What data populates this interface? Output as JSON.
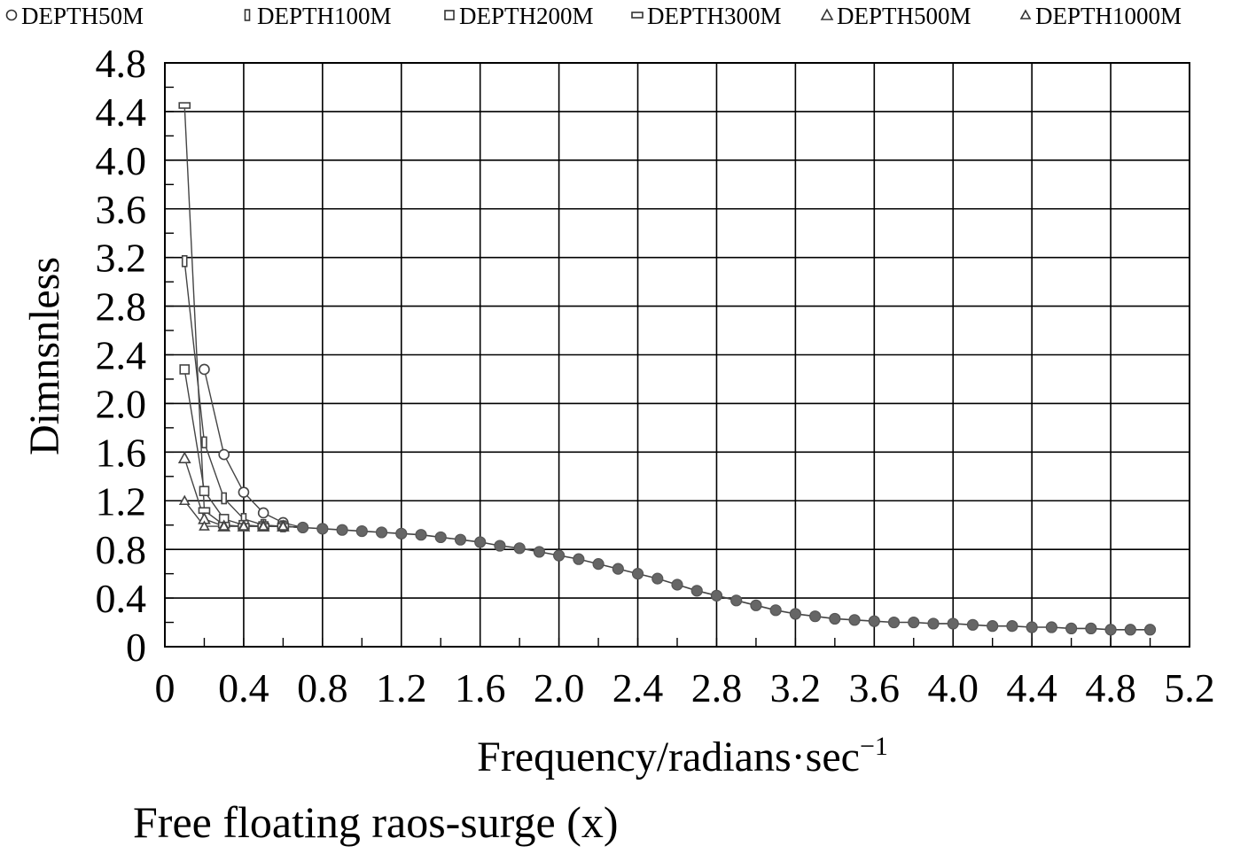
{
  "chart_data": {
    "type": "line",
    "title": "",
    "caption": "Free floating raos-surge (x)",
    "xlabel": "Frequency/radians·sec",
    "xlabel_sup": "−1",
    "ylabel": "Dimnsnless",
    "xlim": [
      0,
      5.2
    ],
    "ylim": [
      0,
      4.8
    ],
    "xticks": [
      "0",
      "0.4",
      "0.8",
      "1.2",
      "1.6",
      "2.0",
      "2.4",
      "2.8",
      "3.2",
      "3.6",
      "4.0",
      "4.4",
      "4.8",
      "5.2"
    ],
    "yticks": [
      "0",
      "0.4",
      "0.8",
      "1.2",
      "1.6",
      "2.0",
      "2.4",
      "2.8",
      "3.2",
      "3.6",
      "4.0",
      "4.4",
      "4.8"
    ],
    "grid": true,
    "legend_position": "top",
    "shared_tail": {
      "x": [
        0.7,
        0.8,
        0.9,
        1.0,
        1.1,
        1.2,
        1.3,
        1.4,
        1.5,
        1.6,
        1.7,
        1.8,
        1.9,
        2.0,
        2.1,
        2.2,
        2.3,
        2.4,
        2.5,
        2.6,
        2.7,
        2.8,
        2.9,
        3.0,
        3.1,
        3.2,
        3.3,
        3.4,
        3.5,
        3.6,
        3.7,
        3.8,
        3.9,
        4.0,
        4.1,
        4.2,
        4.3,
        4.4,
        4.5,
        4.6,
        4.7,
        4.8,
        4.9,
        5.0
      ],
      "y": [
        0.98,
        0.97,
        0.96,
        0.95,
        0.94,
        0.93,
        0.92,
        0.9,
        0.88,
        0.86,
        0.83,
        0.81,
        0.78,
        0.75,
        0.72,
        0.68,
        0.64,
        0.6,
        0.56,
        0.51,
        0.46,
        0.42,
        0.38,
        0.34,
        0.3,
        0.27,
        0.25,
        0.23,
        0.22,
        0.21,
        0.2,
        0.2,
        0.19,
        0.19,
        0.18,
        0.17,
        0.17,
        0.16,
        0.16,
        0.15,
        0.15,
        0.14,
        0.14,
        0.14
      ]
    },
    "series": [
      {
        "name": "DEPTH50M",
        "marker": "circle",
        "x": [
          0.2,
          0.3,
          0.4,
          0.5,
          0.6
        ],
        "y": [
          2.28,
          1.58,
          1.27,
          1.1,
          1.02
        ]
      },
      {
        "name": "DEPTH100M",
        "marker": "thin-rect",
        "x": [
          0.1,
          0.2,
          0.3,
          0.4,
          0.5,
          0.6
        ],
        "y": [
          3.17,
          1.68,
          1.22,
          1.05,
          1.0,
          0.99
        ]
      },
      {
        "name": "DEPTH200M",
        "marker": "square",
        "x": [
          0.1,
          0.2,
          0.3,
          0.4,
          0.5,
          0.6
        ],
        "y": [
          2.28,
          1.28,
          1.05,
          1.0,
          0.99,
          0.99
        ]
      },
      {
        "name": "DEPTH300M",
        "marker": "wide-rect",
        "x": [
          0.1,
          0.2,
          0.3,
          0.4,
          0.5,
          0.6
        ],
        "y": [
          4.45,
          1.12,
          1.0,
          0.99,
          0.99,
          0.99
        ]
      },
      {
        "name": "DEPTH500M",
        "marker": "triangle",
        "x": [
          0.1,
          0.2,
          0.3,
          0.4,
          0.5,
          0.6
        ],
        "y": [
          1.55,
          1.05,
          0.99,
          0.99,
          0.99,
          0.99
        ]
      },
      {
        "name": "DEPTH1000M",
        "marker": "triangle-small",
        "x": [
          0.1,
          0.2,
          0.3,
          0.4,
          0.5,
          0.6
        ],
        "y": [
          1.2,
          0.99,
          0.99,
          0.99,
          0.99,
          0.99
        ]
      }
    ]
  }
}
